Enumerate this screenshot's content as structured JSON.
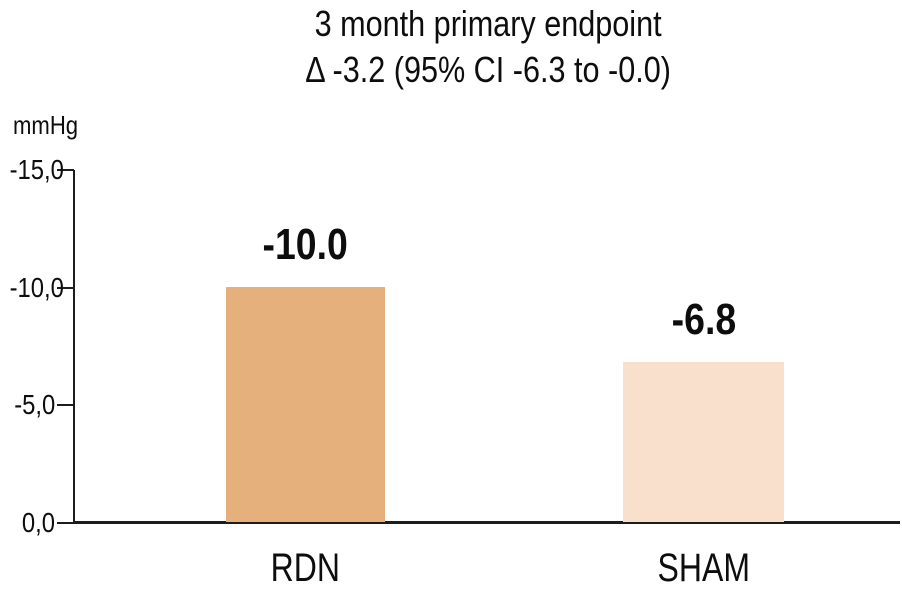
{
  "title": {
    "line1": "3 month primary endpoint",
    "line2": "Δ -3.2 (95% CI -6.3 to -0.0)"
  },
  "chart_data": {
    "type": "bar",
    "title": "3 month primary endpoint",
    "subtitle": "Δ -3.2 (95% CI -6.3 to -0.0)",
    "categories": [
      "RDN",
      "SHAM"
    ],
    "values": [
      -10.0,
      -6.8
    ],
    "value_labels": [
      "-10.0",
      "-6.8"
    ],
    "bar_colors": [
      "#e6b07c",
      "#f8e0cc"
    ],
    "y_axis": {
      "label": "mmHg",
      "ticks": [
        "-15,0",
        "-10,0",
        "-5,0",
        "0,0"
      ],
      "tick_values": [
        -15,
        -10,
        -5,
        0
      ],
      "min": -15,
      "max": 0,
      "inverted_downward_better": true
    },
    "grid": false,
    "legend": false
  },
  "colors": {
    "rdn_bar": "#e6b07c",
    "sham_bar": "#f8e0cc",
    "axis": "#1c1c1c",
    "text": "#0d0d0d",
    "background": "#ffffff"
  }
}
